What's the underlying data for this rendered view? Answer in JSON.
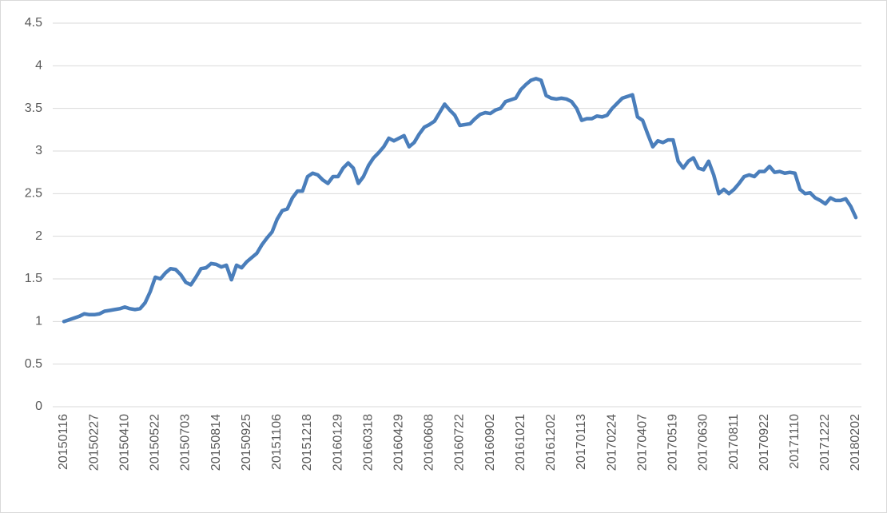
{
  "chart_data": {
    "type": "line",
    "categories": [
      "20150116",
      null,
      null,
      null,
      null,
      null,
      "20150227",
      null,
      null,
      null,
      null,
      null,
      "20150410",
      null,
      null,
      null,
      null,
      null,
      "20150522",
      null,
      null,
      null,
      null,
      null,
      "20150703",
      null,
      null,
      null,
      null,
      null,
      "20150814",
      null,
      null,
      null,
      null,
      null,
      "20150925",
      null,
      null,
      null,
      null,
      null,
      "20151106",
      null,
      null,
      null,
      null,
      null,
      "20151218",
      null,
      null,
      null,
      null,
      null,
      "20160129",
      null,
      null,
      null,
      null,
      null,
      "20160318",
      null,
      null,
      null,
      null,
      null,
      "20160429",
      null,
      null,
      null,
      null,
      null,
      "20160608",
      null,
      null,
      null,
      null,
      null,
      "20160722",
      null,
      null,
      null,
      null,
      null,
      "20160902",
      null,
      null,
      null,
      null,
      null,
      "20161021",
      null,
      null,
      null,
      null,
      null,
      "20161202",
      null,
      null,
      null,
      null,
      null,
      "20170113",
      null,
      null,
      null,
      null,
      null,
      "20170224",
      null,
      null,
      null,
      null,
      null,
      "20170407",
      null,
      null,
      null,
      null,
      null,
      "20170519",
      null,
      null,
      null,
      null,
      null,
      "20170630",
      null,
      null,
      null,
      null,
      null,
      "20170811",
      null,
      null,
      null,
      null,
      null,
      "20170922",
      null,
      null,
      null,
      null,
      null,
      "20171110",
      null,
      null,
      null,
      null,
      null,
      "20171222",
      null,
      null,
      null,
      null,
      null,
      "20180202"
    ],
    "values": [
      1.0,
      1.02,
      1.04,
      1.06,
      1.09,
      1.08,
      1.08,
      1.09,
      1.12,
      1.13,
      1.14,
      1.15,
      1.17,
      1.15,
      1.14,
      1.15,
      1.22,
      1.35,
      1.52,
      1.5,
      1.57,
      1.62,
      1.61,
      1.55,
      1.46,
      1.43,
      1.52,
      1.62,
      1.63,
      1.68,
      1.67,
      1.64,
      1.66,
      1.49,
      1.66,
      1.63,
      1.7,
      1.75,
      1.8,
      1.9,
      1.98,
      2.05,
      2.2,
      2.3,
      2.32,
      2.45,
      2.53,
      2.53,
      2.7,
      2.74,
      2.72,
      2.66,
      2.62,
      2.7,
      2.7,
      2.8,
      2.86,
      2.8,
      2.62,
      2.7,
      2.83,
      2.92,
      2.98,
      3.05,
      3.15,
      3.12,
      3.15,
      3.18,
      3.05,
      3.1,
      3.2,
      3.28,
      3.31,
      3.35,
      3.45,
      3.55,
      3.48,
      3.42,
      3.3,
      3.31,
      3.32,
      3.38,
      3.43,
      3.45,
      3.44,
      3.48,
      3.5,
      3.58,
      3.6,
      3.62,
      3.72,
      3.78,
      3.83,
      3.85,
      3.83,
      3.65,
      3.62,
      3.61,
      3.62,
      3.61,
      3.58,
      3.5,
      3.36,
      3.38,
      3.38,
      3.41,
      3.4,
      3.42,
      3.5,
      3.56,
      3.62,
      3.64,
      3.66,
      3.4,
      3.36,
      3.2,
      3.05,
      3.12,
      3.1,
      3.13,
      3.13,
      2.88,
      2.8,
      2.88,
      2.92,
      2.8,
      2.78,
      2.88,
      2.72,
      2.5,
      2.55,
      2.5,
      2.55,
      2.62,
      2.7,
      2.72,
      2.7,
      2.76,
      2.76,
      2.82,
      2.75,
      2.76,
      2.74,
      2.75,
      2.74,
      2.55,
      2.5,
      2.51,
      2.45,
      2.42,
      2.38,
      2.45,
      2.42,
      2.42,
      2.44,
      2.35,
      2.22
    ],
    "color": "#4a7ebb",
    "ylim": [
      0,
      4.5
    ],
    "yticks": [
      0,
      0.5,
      1,
      1.5,
      2,
      2.5,
      3,
      3.5,
      4,
      4.5
    ],
    "grid": true
  }
}
